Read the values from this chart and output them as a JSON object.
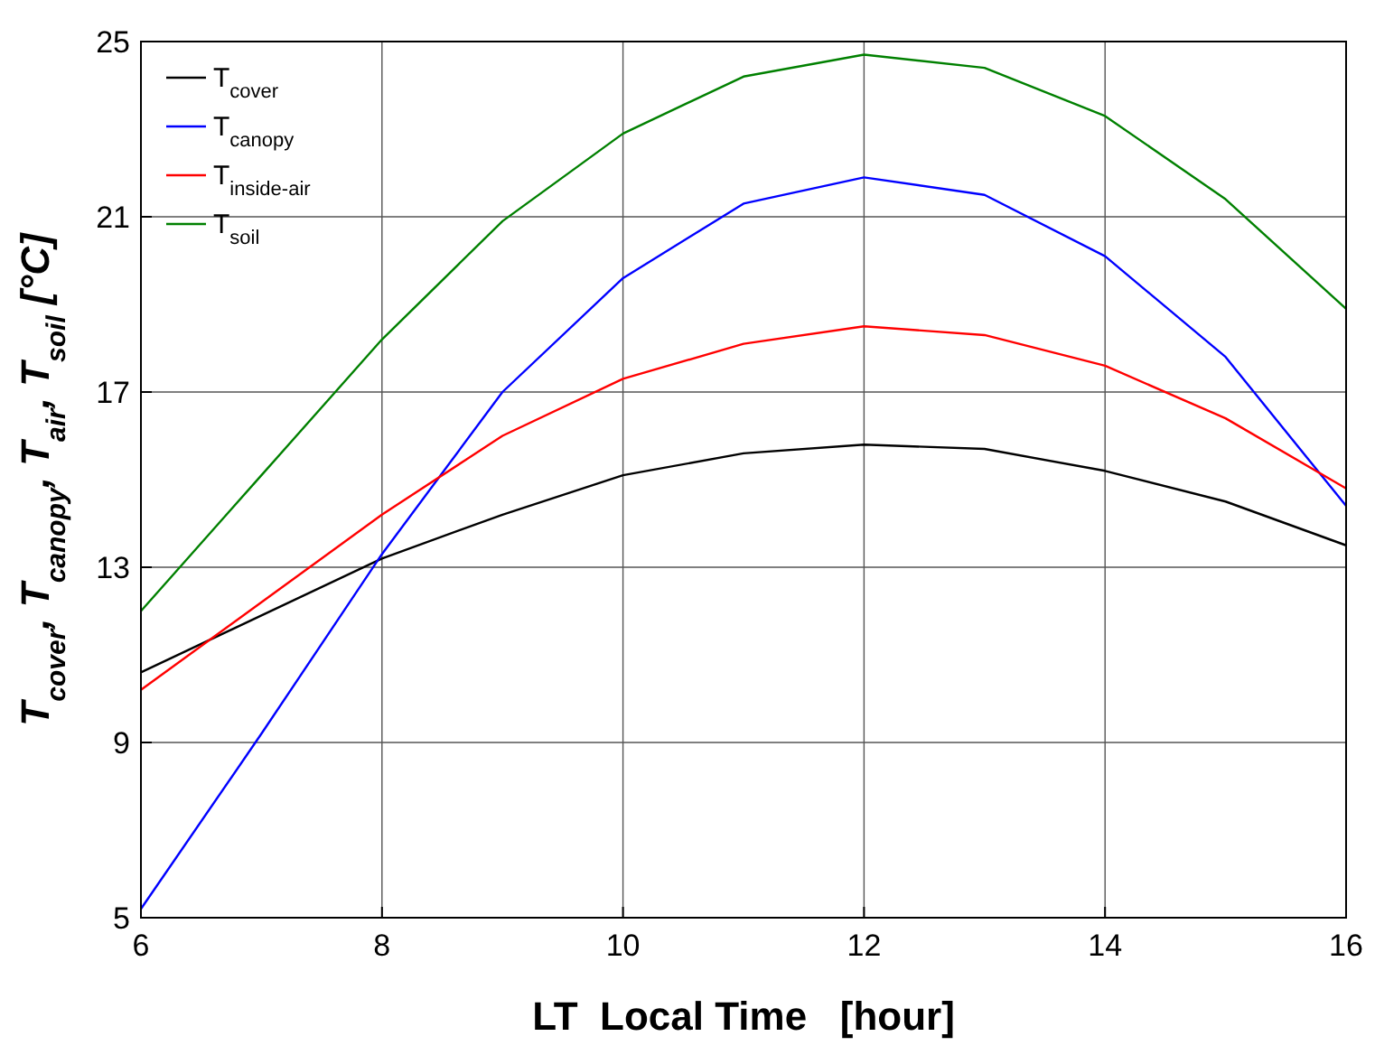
{
  "chart_data": {
    "type": "line",
    "xlabel": "LT  Local Time   [hour]",
    "ylabel": "T$_{cover}$,   T$_{canopy}$,   T$_{air}$,   T$_{soil}$ [°C]",
    "x": [
      6,
      7,
      8,
      9,
      10,
      11,
      12,
      13,
      14,
      15,
      16
    ],
    "series": [
      {
        "name": "T$_{cover}$",
        "color": "#000000",
        "values": [
          10.6,
          11.9,
          13.2,
          14.2,
          15.1,
          15.6,
          15.8,
          15.7,
          15.2,
          14.5,
          13.5
        ]
      },
      {
        "name": "T$_{canopy}$",
        "color": "#0000ff",
        "values": [
          5.2,
          9.2,
          13.3,
          17.0,
          19.6,
          21.3,
          21.9,
          21.5,
          20.1,
          17.8,
          14.4
        ]
      },
      {
        "name": "T$_{inside-air}$",
        "color": "#ff0000",
        "values": [
          10.2,
          12.2,
          14.2,
          16.0,
          17.3,
          18.1,
          18.5,
          18.3,
          17.6,
          16.4,
          14.8
        ]
      },
      {
        "name": "T$_{soil}$",
        "color": "#008000",
        "values": [
          12.0,
          15.1,
          18.2,
          20.9,
          22.9,
          24.2,
          24.7,
          24.4,
          23.3,
          21.4,
          18.9
        ]
      }
    ],
    "xlim": [
      6,
      16
    ],
    "xticks": [
      6,
      8,
      10,
      12,
      14,
      16
    ],
    "ylim": [
      5,
      25
    ],
    "yticks": [
      5,
      9,
      13,
      17,
      21,
      25
    ],
    "grid": true,
    "legend": "top left",
    "marker": "none",
    "line_style": "solid"
  }
}
